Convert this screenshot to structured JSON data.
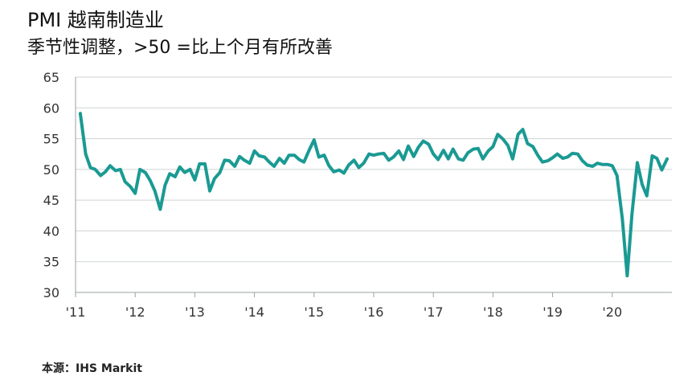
{
  "title": "PMI 越南制造业",
  "subtitle": "季节性调整，>50 =比上个月有所改善",
  "source": "本源：IHS Markit",
  "chart_data": {
    "type": "line",
    "title": "PMI 越南制造业",
    "subtitle": "季节性调整，>50 =比上个月有所改善",
    "xlabel": "",
    "ylabel": "",
    "ylim": [
      30,
      65
    ],
    "yticks": [
      30,
      35,
      40,
      45,
      50,
      55,
      60,
      65
    ],
    "xlim": [
      2011.0,
      2021.0
    ],
    "xtick_labels": [
      "'11",
      "'12",
      "'13",
      "'14",
      "'15",
      "'16",
      "'17",
      "'18",
      "'19",
      "'20"
    ],
    "xtick_positions": [
      2011,
      2012,
      2013,
      2014,
      2015,
      2016,
      2017,
      2018,
      2019,
      2020
    ],
    "grid": true,
    "legend": "none",
    "line_color": "#1a9a93",
    "series": [
      {
        "x": [
          2011.08,
          2011.17,
          2011.25,
          2011.33,
          2011.42,
          2011.5,
          2011.58,
          2011.67,
          2011.75,
          2011.83,
          2011.92,
          2012.0,
          2012.08,
          2012.17,
          2012.25,
          2012.33,
          2012.42,
          2012.5,
          2012.58,
          2012.67,
          2012.75,
          2012.83,
          2012.92,
          2013.0,
          2013.08,
          2013.17,
          2013.25,
          2013.33,
          2013.42,
          2013.5,
          2013.58,
          2013.67,
          2013.75,
          2013.83,
          2013.92,
          2014.0,
          2014.08,
          2014.17,
          2014.25,
          2014.33,
          2014.42,
          2014.5,
          2014.58,
          2014.67,
          2014.75,
          2014.83,
          2014.92,
          2015.0,
          2015.08,
          2015.17,
          2015.25,
          2015.33,
          2015.42,
          2015.5,
          2015.58,
          2015.67,
          2015.75,
          2015.83,
          2015.92,
          2016.0,
          2016.08,
          2016.17,
          2016.25,
          2016.33,
          2016.42,
          2016.5,
          2016.58,
          2016.67,
          2016.75,
          2016.83,
          2016.92,
          2017.0,
          2017.08,
          2017.17,
          2017.25,
          2017.33,
          2017.42,
          2017.5,
          2017.58,
          2017.67,
          2017.75,
          2017.83,
          2017.92,
          2018.0,
          2018.08,
          2018.17,
          2018.25,
          2018.33,
          2018.42,
          2018.5,
          2018.58,
          2018.67,
          2018.75,
          2018.83,
          2018.92,
          2019.0,
          2019.08,
          2019.17,
          2019.25,
          2019.33,
          2019.42,
          2019.5,
          2019.58,
          2019.67,
          2019.75,
          2019.83,
          2019.92,
          2020.0,
          2020.08,
          2020.17,
          2020.25,
          2020.33,
          2020.42,
          2020.5,
          2020.58,
          2020.67,
          2020.75,
          2020.83,
          2020.92
        ],
        "y": [
          59.1,
          52.5,
          50.3,
          50.0,
          49.0,
          49.6,
          50.6,
          49.8,
          50.0,
          48.0,
          47.2,
          46.1,
          50.0,
          49.5,
          48.2,
          46.5,
          43.5,
          47.4,
          49.3,
          48.8,
          50.4,
          49.5,
          50.0,
          48.3,
          50.9,
          50.9,
          46.5,
          48.5,
          49.5,
          51.5,
          51.4,
          50.5,
          52.1,
          51.5,
          51.0,
          53.0,
          52.2,
          52.0,
          51.2,
          50.5,
          51.8,
          51.0,
          52.3,
          52.3,
          51.6,
          51.2,
          53.2,
          54.8,
          52.0,
          52.3,
          50.6,
          49.6,
          49.9,
          49.4,
          50.7,
          51.5,
          50.3,
          51.0,
          52.5,
          52.3,
          52.5,
          52.6,
          51.5,
          52.0,
          53.0,
          51.6,
          53.8,
          52.1,
          53.6,
          54.6,
          54.1,
          52.5,
          51.6,
          53.1,
          51.7,
          53.3,
          51.7,
          51.5,
          52.7,
          53.3,
          53.4,
          51.7,
          53.0,
          53.7,
          55.7,
          54.9,
          53.9,
          51.7,
          55.7,
          56.5,
          54.2,
          53.7,
          52.3,
          51.2,
          51.4,
          51.9,
          52.5,
          51.8,
          52.0,
          52.6,
          52.5,
          51.4,
          50.7,
          50.5,
          51.0,
          50.8,
          50.8,
          50.6,
          49.0,
          41.9,
          32.7,
          42.7,
          51.1,
          47.6,
          45.7,
          52.2,
          51.8,
          49.9,
          51.7
        ]
      }
    ]
  }
}
